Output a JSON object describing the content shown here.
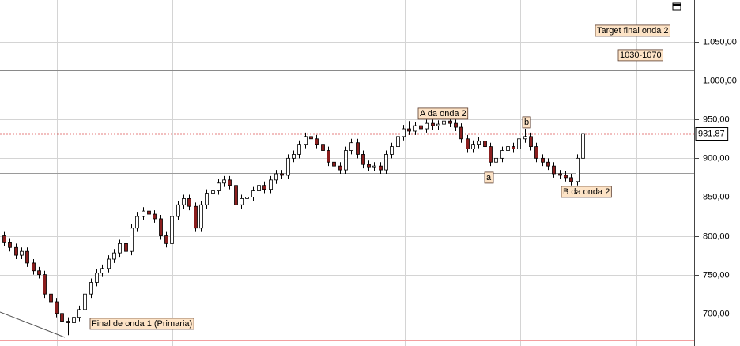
{
  "chart_data": {
    "type": "candlestick",
    "open": [
      800,
      792,
      785,
      775,
      780,
      765,
      755,
      750,
      725,
      715,
      700,
      690,
      688,
      695,
      705,
      725,
      740,
      752,
      758,
      770,
      778,
      790,
      780,
      810,
      825,
      832,
      828,
      822,
      800,
      790,
      825,
      840,
      848,
      838,
      810,
      840,
      855,
      858,
      868,
      872,
      865,
      840,
      848,
      850,
      858,
      865,
      860,
      872,
      880,
      878,
      900,
      905,
      918,
      928,
      925,
      918,
      910,
      895,
      890,
      885,
      910,
      920,
      905,
      892,
      888,
      890,
      885,
      905,
      915,
      928,
      938,
      935,
      942,
      938,
      945,
      942,
      944,
      948,
      945,
      940,
      925,
      912,
      918,
      922,
      915,
      895,
      900,
      910,
      915,
      912,
      925,
      928,
      915,
      900,
      895,
      890,
      880,
      878,
      875,
      870,
      900
    ],
    "high": [
      805,
      797,
      790,
      785,
      785,
      770,
      760,
      755,
      730,
      720,
      705,
      695,
      700,
      710,
      730,
      745,
      757,
      763,
      775,
      783,
      795,
      795,
      815,
      830,
      837,
      837,
      833,
      827,
      805,
      830,
      845,
      853,
      853,
      843,
      845,
      860,
      863,
      873,
      877,
      877,
      870,
      853,
      855,
      863,
      870,
      870,
      877,
      885,
      885,
      905,
      910,
      923,
      933,
      933,
      930,
      923,
      915,
      900,
      895,
      915,
      925,
      925,
      910,
      897,
      895,
      895,
      910,
      920,
      933,
      943,
      948,
      947,
      947,
      950,
      950,
      949,
      953,
      953,
      950,
      945,
      930,
      923,
      927,
      927,
      920,
      905,
      915,
      920,
      920,
      930,
      938,
      933,
      920,
      905,
      900,
      895,
      885,
      883,
      880,
      905,
      937
    ],
    "low": [
      787,
      780,
      770,
      770,
      760,
      750,
      745,
      720,
      710,
      695,
      685,
      672,
      683,
      690,
      700,
      720,
      735,
      747,
      753,
      765,
      773,
      775,
      775,
      805,
      820,
      823,
      817,
      795,
      785,
      785,
      820,
      835,
      833,
      805,
      805,
      835,
      850,
      853,
      863,
      860,
      835,
      835,
      843,
      845,
      853,
      855,
      855,
      867,
      873,
      873,
      895,
      900,
      913,
      920,
      913,
      905,
      890,
      885,
      880,
      880,
      905,
      900,
      887,
      883,
      883,
      880,
      880,
      900,
      910,
      923,
      930,
      930,
      933,
      933,
      937,
      937,
      939,
      940,
      935,
      920,
      907,
      907,
      913,
      910,
      890,
      890,
      895,
      905,
      907,
      907,
      920,
      910,
      895,
      890,
      885,
      875,
      873,
      870,
      865,
      865,
      895
    ],
    "close": [
      792,
      785,
      775,
      780,
      765,
      755,
      750,
      725,
      715,
      700,
      690,
      688,
      695,
      705,
      725,
      740,
      752,
      758,
      770,
      778,
      790,
      780,
      810,
      825,
      832,
      828,
      822,
      800,
      790,
      825,
      840,
      848,
      838,
      810,
      840,
      855,
      858,
      868,
      872,
      865,
      840,
      848,
      850,
      858,
      865,
      860,
      872,
      880,
      878,
      900,
      905,
      918,
      928,
      925,
      918,
      910,
      895,
      890,
      885,
      910,
      920,
      905,
      892,
      888,
      890,
      885,
      905,
      915,
      928,
      938,
      935,
      942,
      938,
      945,
      942,
      944,
      948,
      945,
      940,
      925,
      912,
      918,
      922,
      915,
      895,
      900,
      910,
      915,
      912,
      925,
      928,
      915,
      900,
      895,
      890,
      880,
      878,
      875,
      870,
      900,
      931.87
    ],
    "up_color": "#ffffff",
    "down_color": "#8b1e1e",
    "ylim": [
      658,
      1104
    ],
    "yticks": [
      {
        "value": 700,
        "label": "700,00"
      },
      {
        "value": 750,
        "label": "750,00"
      },
      {
        "value": 800,
        "label": "800,00"
      },
      {
        "value": 850,
        "label": "850,00"
      },
      {
        "value": 900,
        "label": "900,00"
      },
      {
        "value": 950,
        "label": "950,00"
      },
      {
        "value": 1000,
        "label": "1.000,00"
      },
      {
        "value": 1050,
        "label": "1.050,00"
      }
    ],
    "grid": true,
    "last_price": {
      "value": 931.87,
      "label": "931,87",
      "color": "#cc0000"
    },
    "hlines": [
      {
        "value": 1013,
        "color": "#8a8a8a"
      },
      {
        "value": 881,
        "color": "#9a9a9a"
      },
      {
        "value": 665,
        "color": "#f2a0a0"
      }
    ],
    "annotations": [
      "Target final onda 2",
      "1030-1070",
      "A da onda 2",
      "b",
      "a",
      "B da onda 2",
      "Final de onda 1 (Primaria)"
    ]
  }
}
